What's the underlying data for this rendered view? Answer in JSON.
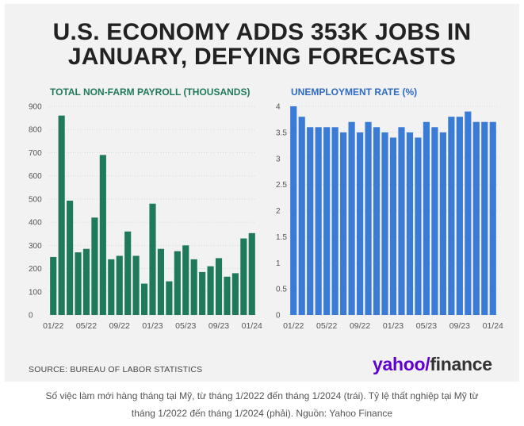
{
  "title_lines": [
    "U.S. ECONOMY ADDS 353K JOBS IN",
    "JANUARY, DEFYING FORECASTS"
  ],
  "source": "SOURCE: BUREAU OF LABOR STATISTICS",
  "logo": {
    "brand": "yahoo/",
    "product": "finance"
  },
  "caption_lines": [
    "Số việc làm mới hàng tháng tại Mỹ, từ tháng 1/2022 đến tháng 1/2024 (trái). Tỷ lệ thất nghiệp tại Mỹ từ",
    "tháng 1/2022 đến tháng 1/2024 (phải). Nguồn: Yahoo Finance"
  ],
  "colors": {
    "payroll": "#1f7a5c",
    "unemployment": "#3a7bd5",
    "logo": "#6001d2"
  },
  "chart_data": [
    {
      "type": "bar",
      "title": "TOTAL NON-FARM PAYROLL (THOUSANDS)",
      "ylim": [
        0,
        900
      ],
      "yticks": [
        0,
        100,
        200,
        300,
        400,
        500,
        600,
        700,
        800,
        900
      ],
      "xtick_labels": [
        "01/22",
        "05/22",
        "09/22",
        "01/23",
        "05/23",
        "09/23",
        "01/24"
      ],
      "xtick_every": 4,
      "values": [
        250,
        860,
        493,
        270,
        285,
        420,
        690,
        240,
        255,
        360,
        255,
        135,
        480,
        285,
        145,
        275,
        300,
        240,
        185,
        210,
        245,
        165,
        180,
        330,
        353
      ],
      "grid": true
    },
    {
      "type": "bar",
      "title": "UNEMPLOYMENT RATE (%)",
      "ylim": [
        0,
        4
      ],
      "yticks": [
        0,
        0.5,
        1,
        1.5,
        2,
        2.5,
        3,
        3.5,
        4
      ],
      "xtick_labels": [
        "01/22",
        "05/22",
        "09/22",
        "01/23",
        "05/23",
        "09/23",
        "01/24"
      ],
      "xtick_every": 4,
      "values": [
        4.0,
        3.8,
        3.6,
        3.6,
        3.6,
        3.6,
        3.5,
        3.7,
        3.5,
        3.7,
        3.6,
        3.5,
        3.4,
        3.6,
        3.5,
        3.4,
        3.7,
        3.6,
        3.5,
        3.8,
        3.8,
        3.9,
        3.7,
        3.7,
        3.7
      ],
      "grid": true
    }
  ]
}
